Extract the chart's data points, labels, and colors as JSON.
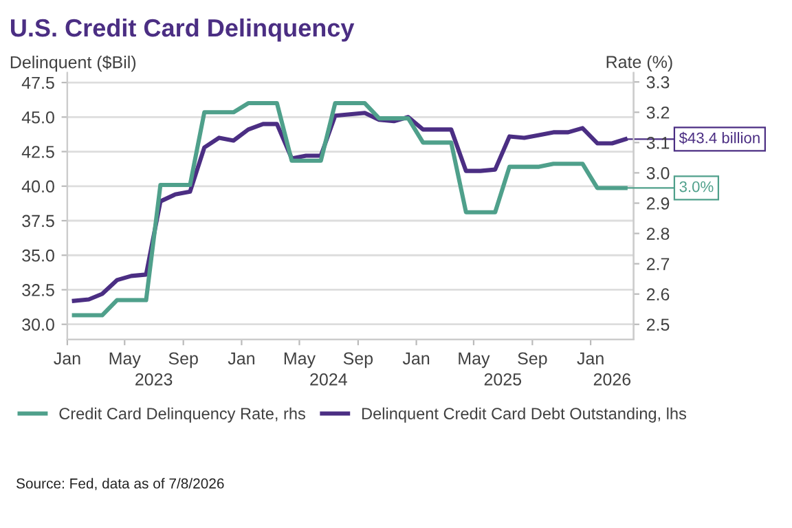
{
  "chart_data": {
    "type": "line",
    "title": "U.S. Credit Card Delinquency",
    "ylabel": "Delinquent ($Bil)",
    "y2label": "Rate (%)",
    "x": [
      "2023-01-15",
      "2023-02-15",
      "2023-03-15",
      "2023-04-15",
      "2023-05-15",
      "2023-06-15",
      "2023-07-15",
      "2023-08-15",
      "2023-09-15",
      "2023-10-15",
      "2023-11-15",
      "2023-12-15",
      "2024-01-15",
      "2024-02-15",
      "2024-03-15",
      "2024-04-15",
      "2024-05-15",
      "2024-06-15",
      "2024-07-15",
      "2024-08-15",
      "2024-09-15",
      "2024-10-15",
      "2024-11-15",
      "2024-12-15",
      "2025-01-15",
      "2025-02-15",
      "2025-03-15",
      "2025-04-15",
      "2025-05-15",
      "2025-06-15",
      "2025-07-15",
      "2025-08-15",
      "2025-09-15",
      "2025-10-15",
      "2025-11-15",
      "2025-12-15",
      "2026-01-15",
      "2026-02-15",
      "2026-03-15"
    ],
    "series": [
      {
        "name": "Credit Card Delinquency Rate, rhs",
        "color": "#4fa08b",
        "axis": "y2",
        "values": [
          2.53,
          2.53,
          2.53,
          2.58,
          2.58,
          2.58,
          2.96,
          2.96,
          2.96,
          3.2,
          3.2,
          3.2,
          3.23,
          3.23,
          3.23,
          3.04,
          3.04,
          3.04,
          3.23,
          3.23,
          3.23,
          3.18,
          3.18,
          3.18,
          3.1,
          3.1,
          3.1,
          2.87,
          2.87,
          2.87,
          3.02,
          3.02,
          3.02,
          3.03,
          3.03,
          3.03,
          2.95,
          2.95,
          2.95
        ],
        "value_labels": [
          null,
          null,
          null,
          null,
          null,
          null,
          null,
          null,
          null,
          null,
          null,
          null,
          null,
          null,
          null,
          null,
          null,
          null,
          null,
          null,
          null,
          null,
          null,
          null,
          null,
          null,
          null,
          null,
          null,
          null,
          null,
          null,
          null,
          null,
          null,
          null,
          null,
          null,
          "3.0%"
        ]
      },
      {
        "name": "Delinquent Credit Card Debt Outstanding, lhs",
        "color": "#4b2e83",
        "axis": "y",
        "values": [
          31.7,
          31.8,
          32.2,
          33.2,
          33.5,
          33.6,
          38.9,
          39.4,
          39.6,
          42.8,
          43.5,
          43.3,
          44.1,
          44.5,
          44.5,
          42.0,
          42.2,
          42.2,
          45.1,
          45.2,
          45.3,
          44.8,
          44.7,
          45.0,
          44.1,
          44.1,
          44.1,
          41.1,
          41.1,
          41.2,
          43.6,
          43.5,
          43.7,
          43.9,
          43.9,
          44.2,
          43.1,
          43.1,
          43.4
        ],
        "value_labels": [
          null,
          null,
          null,
          null,
          null,
          null,
          null,
          null,
          null,
          null,
          null,
          null,
          null,
          null,
          null,
          null,
          null,
          null,
          null,
          null,
          null,
          null,
          null,
          null,
          null,
          null,
          null,
          null,
          null,
          null,
          null,
          null,
          null,
          null,
          null,
          null,
          null,
          null,
          "$43.4 billion"
        ]
      }
    ],
    "xlim": [
      "2023-01-01",
      "2026-04-01"
    ],
    "xticks": [
      {
        "value": "2023-01-01",
        "label": "Jan"
      },
      {
        "value": "2023-05-01",
        "label": "May"
      },
      {
        "value": "2023-09-01",
        "label": "Sep"
      },
      {
        "value": "2024-01-01",
        "label": "Jan"
      },
      {
        "value": "2024-05-01",
        "label": "May"
      },
      {
        "value": "2024-09-01",
        "label": "Sep"
      },
      {
        "value": "2025-01-01",
        "label": "Jan"
      },
      {
        "value": "2025-05-01",
        "label": "May"
      },
      {
        "value": "2025-09-01",
        "label": "Sep"
      },
      {
        "value": "2026-01-01",
        "label": "Jan"
      }
    ],
    "x2lim": [
      "2023-01-01",
      "2026-04-01"
    ],
    "x2ticks": [
      {
        "value": "2023-07-01",
        "label": "2023"
      },
      {
        "value": "2024-07-01",
        "label": "2024"
      },
      {
        "value": "2025-07-01",
        "label": "2025"
      },
      {
        "value": "2026-02-15",
        "label": "2026"
      }
    ],
    "ylim": [
      28.9,
      48.2
    ],
    "yticks": [
      {
        "value": 30,
        "label": "30.0"
      },
      32.5,
      {
        "value": 35,
        "label": "35.0"
      },
      37.5,
      {
        "value": 40,
        "label": "40.0"
      },
      42.5,
      {
        "value": 45,
        "label": "45.0"
      },
      47.5
    ],
    "y2lim": [
      2.45,
      3.33
    ],
    "y2ticks": [
      2.5,
      2.6,
      2.7,
      2.8,
      2.9,
      {
        "value": 3,
        "label": "3.0"
      },
      3.1,
      3.2,
      3.3
    ],
    "grid": "y",
    "legend": "bottom",
    "marker": "none",
    "line_style": "solid",
    "annotations": [
      "Source: Fed, data as of 7/8/2026"
    ]
  }
}
